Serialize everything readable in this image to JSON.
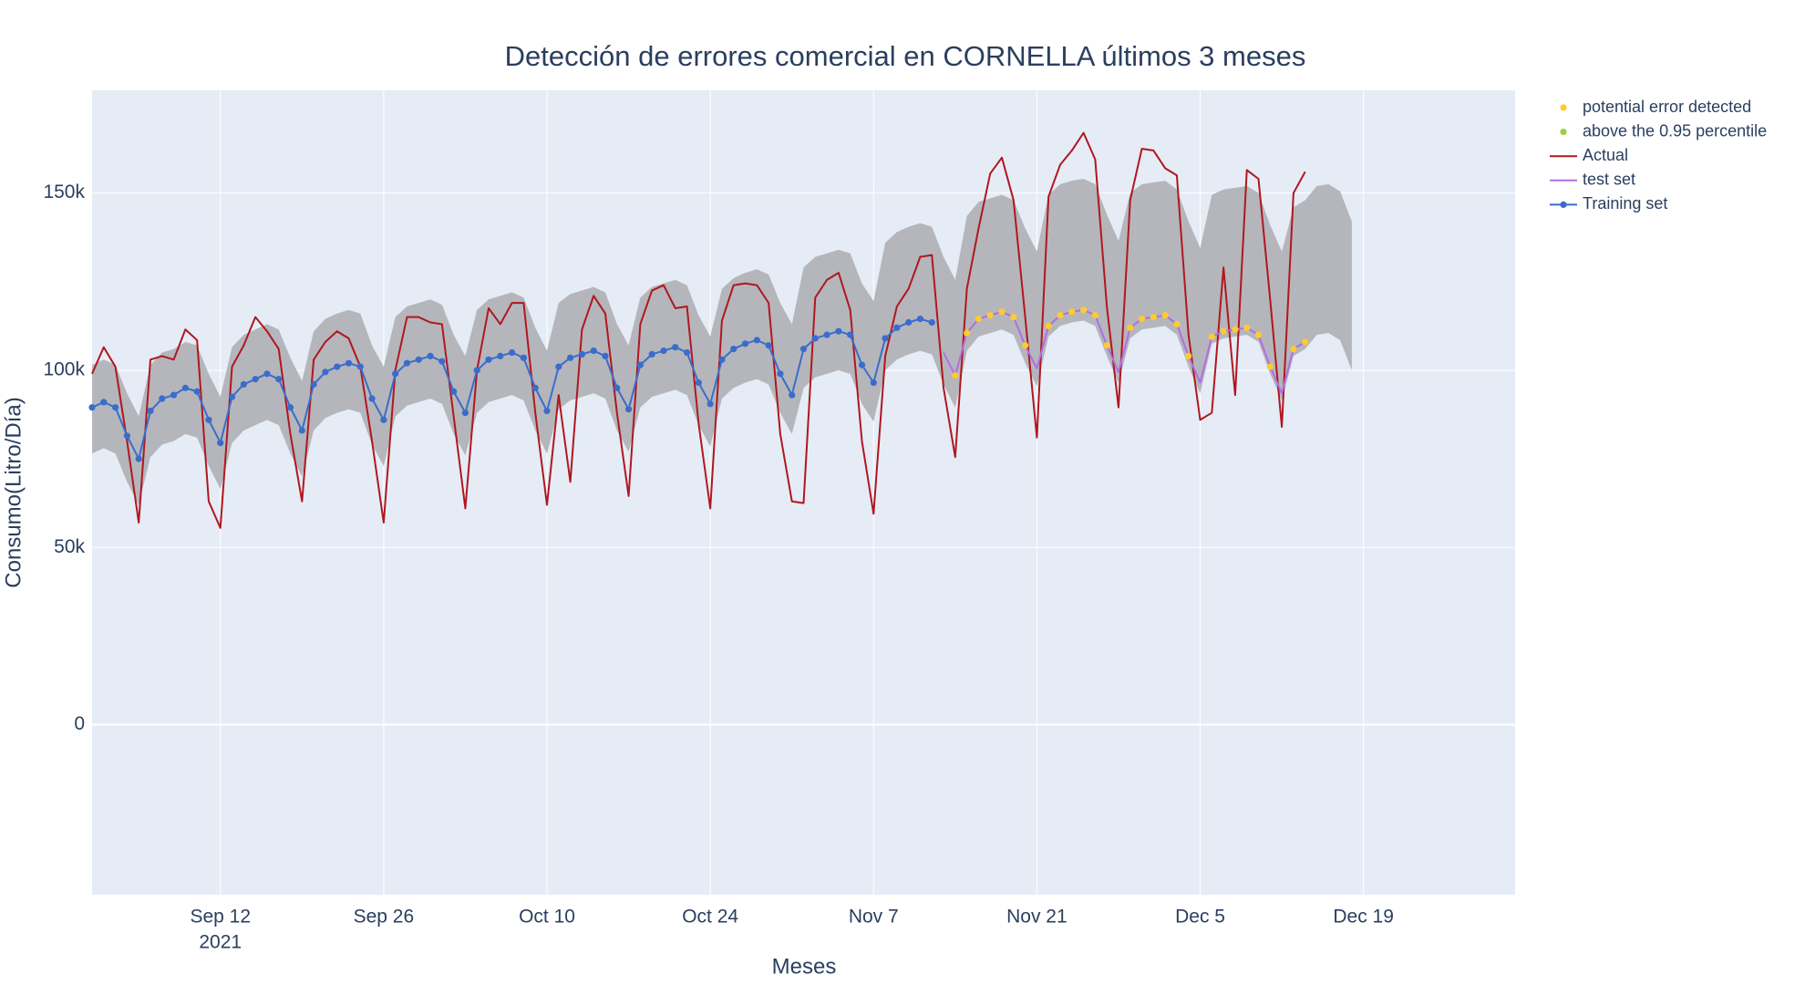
{
  "chart_data": {
    "type": "line",
    "title": "Detección de errores comercial en CORNELLA últimos 3 meses",
    "x_label": "Meses",
    "y_label": "Consumo(Litro/Día)",
    "x_year_label": "2021",
    "grid": true,
    "legend_position": "outside-right",
    "xlim": [
      "2021-09-01",
      "2022-01-01"
    ],
    "xticks": [
      {
        "value": "2021-09-12",
        "label": "Sep 12"
      },
      {
        "value": "2021-09-26",
        "label": "Sep 26"
      },
      {
        "value": "2021-10-10",
        "label": "Oct 10"
      },
      {
        "value": "2021-10-24",
        "label": "Oct 24"
      },
      {
        "value": "2021-11-07",
        "label": "Nov 7"
      },
      {
        "value": "2021-11-21",
        "label": "Nov 21"
      },
      {
        "value": "2021-12-05",
        "label": "Dec 5"
      },
      {
        "value": "2021-12-19",
        "label": "Dec 19"
      }
    ],
    "ylim": [
      -48000,
      179000
    ],
    "yticks": [
      0,
      {
        "value": 50000,
        "label": "50k"
      },
      {
        "value": 100000,
        "label": "100k"
      },
      {
        "value": 150000,
        "label": "150k"
      }
    ],
    "x": [
      "2021-09-01",
      "2021-09-02",
      "2021-09-03",
      "2021-09-04",
      "2021-09-05",
      "2021-09-06",
      "2021-09-07",
      "2021-09-08",
      "2021-09-09",
      "2021-09-10",
      "2021-09-11",
      "2021-09-12",
      "2021-09-13",
      "2021-09-14",
      "2021-09-15",
      "2021-09-16",
      "2021-09-17",
      "2021-09-18",
      "2021-09-19",
      "2021-09-20",
      "2021-09-21",
      "2021-09-22",
      "2021-09-23",
      "2021-09-24",
      "2021-09-25",
      "2021-09-26",
      "2021-09-27",
      "2021-09-28",
      "2021-09-29",
      "2021-09-30",
      "2021-10-01",
      "2021-10-02",
      "2021-10-03",
      "2021-10-04",
      "2021-10-05",
      "2021-10-06",
      "2021-10-07",
      "2021-10-08",
      "2021-10-09",
      "2021-10-10",
      "2021-10-11",
      "2021-10-12",
      "2021-10-13",
      "2021-10-14",
      "2021-10-15",
      "2021-10-16",
      "2021-10-17",
      "2021-10-18",
      "2021-10-19",
      "2021-10-20",
      "2021-10-21",
      "2021-10-22",
      "2021-10-23",
      "2021-10-24",
      "2021-10-25",
      "2021-10-26",
      "2021-10-27",
      "2021-10-28",
      "2021-10-29",
      "2021-10-30",
      "2021-10-31",
      "2021-11-01",
      "2021-11-02",
      "2021-11-03",
      "2021-11-04",
      "2021-11-05",
      "2021-11-06",
      "2021-11-07",
      "2021-11-08",
      "2021-11-09",
      "2021-11-10",
      "2021-11-11",
      "2021-11-12",
      "2021-11-13",
      "2021-11-14",
      "2021-11-15",
      "2021-11-16",
      "2021-11-17",
      "2021-11-18",
      "2021-11-19",
      "2021-11-20",
      "2021-11-21",
      "2021-11-22",
      "2021-11-23",
      "2021-11-24",
      "2021-11-25",
      "2021-11-26",
      "2021-11-27",
      "2021-11-28",
      "2021-11-29",
      "2021-11-30",
      "2021-12-01",
      "2021-12-02",
      "2021-12-03",
      "2021-12-04",
      "2021-12-05",
      "2021-12-06",
      "2021-12-07",
      "2021-12-08",
      "2021-12-09",
      "2021-12-10",
      "2021-12-11",
      "2021-12-12",
      "2021-12-13",
      "2021-12-14",
      "2021-12-15",
      "2021-12-16",
      "2021-12-17",
      "2021-12-18"
    ],
    "band": {
      "color": "#b4b6bb",
      "upper": [
        101500,
        103000,
        101500,
        93500,
        87000,
        101500,
        105000,
        106000,
        108000,
        107000,
        99000,
        92500,
        106500,
        110000,
        111500,
        113000,
        111500,
        103500,
        97000,
        111000,
        114500,
        116000,
        117000,
        116000,
        107000,
        101000,
        115000,
        118000,
        119000,
        120000,
        118500,
        110000,
        104000,
        117000,
        120000,
        121000,
        122000,
        120500,
        112000,
        105500,
        119000,
        121500,
        122500,
        123500,
        122000,
        113000,
        107000,
        120500,
        123500,
        124500,
        125500,
        124000,
        115500,
        109500,
        123000,
        126000,
        127500,
        128500,
        127000,
        119000,
        113000,
        129000,
        132000,
        133000,
        134000,
        133000,
        124500,
        119500,
        136000,
        139000,
        140500,
        141500,
        140500,
        132000,
        125500,
        143500,
        147500,
        148500,
        149500,
        148000,
        140000,
        133500,
        149500,
        152500,
        153500,
        154000,
        152500,
        144000,
        136500,
        150000,
        152500,
        153000,
        153500,
        151000,
        142000,
        134500,
        149500,
        151000,
        151500,
        152000,
        150000,
        141000,
        133500,
        146000,
        148000,
        152000,
        152500,
        150500,
        142000
      ],
      "lower": [
        76500,
        78000,
        76500,
        68500,
        62000,
        75500,
        79000,
        80000,
        82000,
        81000,
        73000,
        66500,
        79500,
        83000,
        84500,
        86000,
        84500,
        76500,
        70000,
        83000,
        86500,
        88000,
        89000,
        88000,
        79000,
        73000,
        87000,
        90000,
        91000,
        92000,
        90500,
        82000,
        76000,
        88000,
        91000,
        92000,
        93000,
        91500,
        83000,
        76500,
        89000,
        91500,
        92500,
        93500,
        92000,
        83000,
        77000,
        89500,
        92500,
        93500,
        94500,
        93000,
        84500,
        78500,
        92000,
        95000,
        96500,
        97500,
        96000,
        88000,
        82000,
        95000,
        98000,
        99000,
        100000,
        99000,
        90500,
        85500,
        100000,
        103000,
        104500,
        105500,
        104500,
        96000,
        89500,
        105500,
        109500,
        110500,
        111500,
        110000,
        102000,
        95500,
        109500,
        112500,
        113500,
        114000,
        112500,
        104000,
        96500,
        109000,
        111500,
        112000,
        112500,
        110000,
        101000,
        93500,
        107500,
        109000,
        109500,
        110000,
        108000,
        99000,
        91500,
        104000,
        106000,
        110000,
        110500,
        108500,
        100000
      ]
    },
    "series": [
      {
        "name": "potential error detected",
        "color": "#fecb2f",
        "mode": "markers",
        "values": [
          null,
          null,
          null,
          null,
          null,
          null,
          null,
          null,
          null,
          null,
          null,
          null,
          null,
          null,
          null,
          null,
          null,
          null,
          null,
          null,
          null,
          null,
          null,
          null,
          null,
          null,
          null,
          null,
          null,
          null,
          null,
          null,
          null,
          null,
          null,
          null,
          null,
          null,
          null,
          null,
          null,
          null,
          null,
          null,
          null,
          null,
          null,
          null,
          null,
          null,
          null,
          null,
          null,
          null,
          null,
          null,
          null,
          null,
          null,
          null,
          null,
          null,
          null,
          null,
          null,
          null,
          null,
          null,
          null,
          null,
          null,
          null,
          null,
          null,
          98500,
          110500,
          114500,
          115500,
          116500,
          115000,
          107000,
          null,
          112500,
          115500,
          116500,
          117000,
          115500,
          107000,
          null,
          112000,
          114500,
          115000,
          115500,
          113000,
          104000,
          null,
          109500,
          111000,
          111500,
          112000,
          110000,
          101000,
          null,
          106000,
          108000,
          null,
          null,
          null,
          null
        ]
      },
      {
        "name": "above the 0.95 percentile",
        "color": "#9ad048",
        "mode": "markers",
        "values": [
          null,
          null,
          null,
          null,
          null,
          null,
          null,
          null,
          null,
          null,
          86000,
          79500,
          null,
          null,
          null,
          null,
          null,
          null,
          null,
          null,
          null,
          null,
          null,
          null,
          null,
          86000,
          null,
          null,
          null,
          null,
          null,
          null,
          88000,
          null,
          null,
          null,
          null,
          null,
          null,
          88500,
          null,
          103500,
          null,
          null,
          null,
          null,
          89000,
          null,
          null,
          null,
          null,
          null,
          null,
          90500,
          null,
          null,
          null,
          null,
          null,
          null,
          93000,
          106000,
          null,
          null,
          null,
          null,
          101500,
          null,
          null,
          null,
          null,
          null,
          null,
          null,
          null,
          null,
          null,
          null,
          null,
          null,
          null,
          null,
          null,
          null,
          null,
          null,
          null,
          null,
          null,
          null,
          null,
          null,
          null,
          null,
          null,
          null,
          null,
          null,
          null,
          null,
          null,
          null,
          null,
          null,
          null,
          null,
          null,
          null,
          null
        ]
      },
      {
        "name": "Actual",
        "color": "#b0171f",
        "mode": "lines",
        "values": [
          99000,
          106500,
          101000,
          80000,
          57000,
          103000,
          104000,
          103000,
          111500,
          108500,
          63000,
          55500,
          101000,
          107000,
          115000,
          111000,
          106000,
          82000,
          63000,
          103000,
          108000,
          111000,
          109000,
          101000,
          80000,
          57000,
          100000,
          115000,
          115000,
          113500,
          113000,
          87000,
          61000,
          100000,
          117500,
          113000,
          119000,
          119000,
          88000,
          62000,
          93000,
          68500,
          111500,
          121000,
          116000,
          88000,
          64500,
          113000,
          122500,
          124000,
          117500,
          118000,
          85000,
          61000,
          114000,
          124000,
          124500,
          124000,
          119000,
          82000,
          63000,
          62500,
          120500,
          125500,
          127500,
          117000,
          80000,
          59500,
          104000,
          118000,
          123000,
          132000,
          132500,
          95000,
          75500,
          123000,
          140000,
          155500,
          160000,
          148000,
          115000,
          81000,
          149000,
          158000,
          162000,
          167000,
          159500,
          118000,
          89500,
          148000,
          162500,
          162000,
          157000,
          155000,
          110000,
          86000,
          88000,
          129000,
          93000,
          156500,
          154000,
          120000,
          84000,
          150000,
          156000,
          null,
          null,
          null,
          null
        ]
      },
      {
        "name": "test set",
        "color": "#b06ee6",
        "mode": "lines",
        "values": [
          null,
          null,
          null,
          null,
          null,
          null,
          null,
          null,
          null,
          null,
          null,
          null,
          null,
          null,
          null,
          null,
          null,
          null,
          null,
          null,
          null,
          null,
          null,
          null,
          null,
          null,
          null,
          null,
          null,
          null,
          null,
          null,
          null,
          null,
          null,
          null,
          null,
          null,
          null,
          null,
          null,
          null,
          null,
          null,
          null,
          null,
          null,
          null,
          null,
          null,
          null,
          null,
          null,
          null,
          null,
          null,
          null,
          null,
          null,
          null,
          null,
          null,
          null,
          null,
          null,
          null,
          null,
          null,
          null,
          null,
          null,
          null,
          null,
          105000,
          98500,
          110500,
          114500,
          115500,
          116500,
          115000,
          107000,
          100500,
          112500,
          115500,
          116500,
          117000,
          115500,
          107000,
          99500,
          112000,
          114500,
          115000,
          115500,
          113000,
          104000,
          96500,
          109500,
          111000,
          111500,
          112000,
          110000,
          101000,
          93500,
          106000,
          108000,
          null,
          null,
          null,
          null
        ]
      },
      {
        "name": "Training set",
        "color": "#3b6ccc",
        "mode": "lines+markers",
        "values": [
          89500,
          91000,
          89500,
          81500,
          75000,
          88500,
          92000,
          93000,
          95000,
          94000,
          86000,
          79500,
          92500,
          96000,
          97500,
          99000,
          97500,
          89500,
          83000,
          96000,
          99500,
          101000,
          102000,
          101000,
          92000,
          86000,
          99000,
          102000,
          103000,
          104000,
          102500,
          94000,
          88000,
          100000,
          103000,
          104000,
          105000,
          103500,
          95000,
          88500,
          101000,
          103500,
          104500,
          105500,
          104000,
          95000,
          89000,
          101500,
          104500,
          105500,
          106500,
          105000,
          96500,
          90500,
          103000,
          106000,
          107500,
          108500,
          107000,
          99000,
          93000,
          106000,
          109000,
          110000,
          111000,
          110000,
          101500,
          96500,
          109000,
          112000,
          113500,
          114500,
          113500,
          null,
          null,
          null,
          null,
          null,
          null,
          null,
          null,
          null,
          null,
          null,
          null,
          null,
          null,
          null,
          null,
          null,
          null,
          null,
          null,
          null,
          null,
          null,
          null,
          null,
          null,
          null,
          null,
          null,
          null,
          null,
          null,
          null,
          null,
          null,
          null
        ]
      }
    ]
  }
}
